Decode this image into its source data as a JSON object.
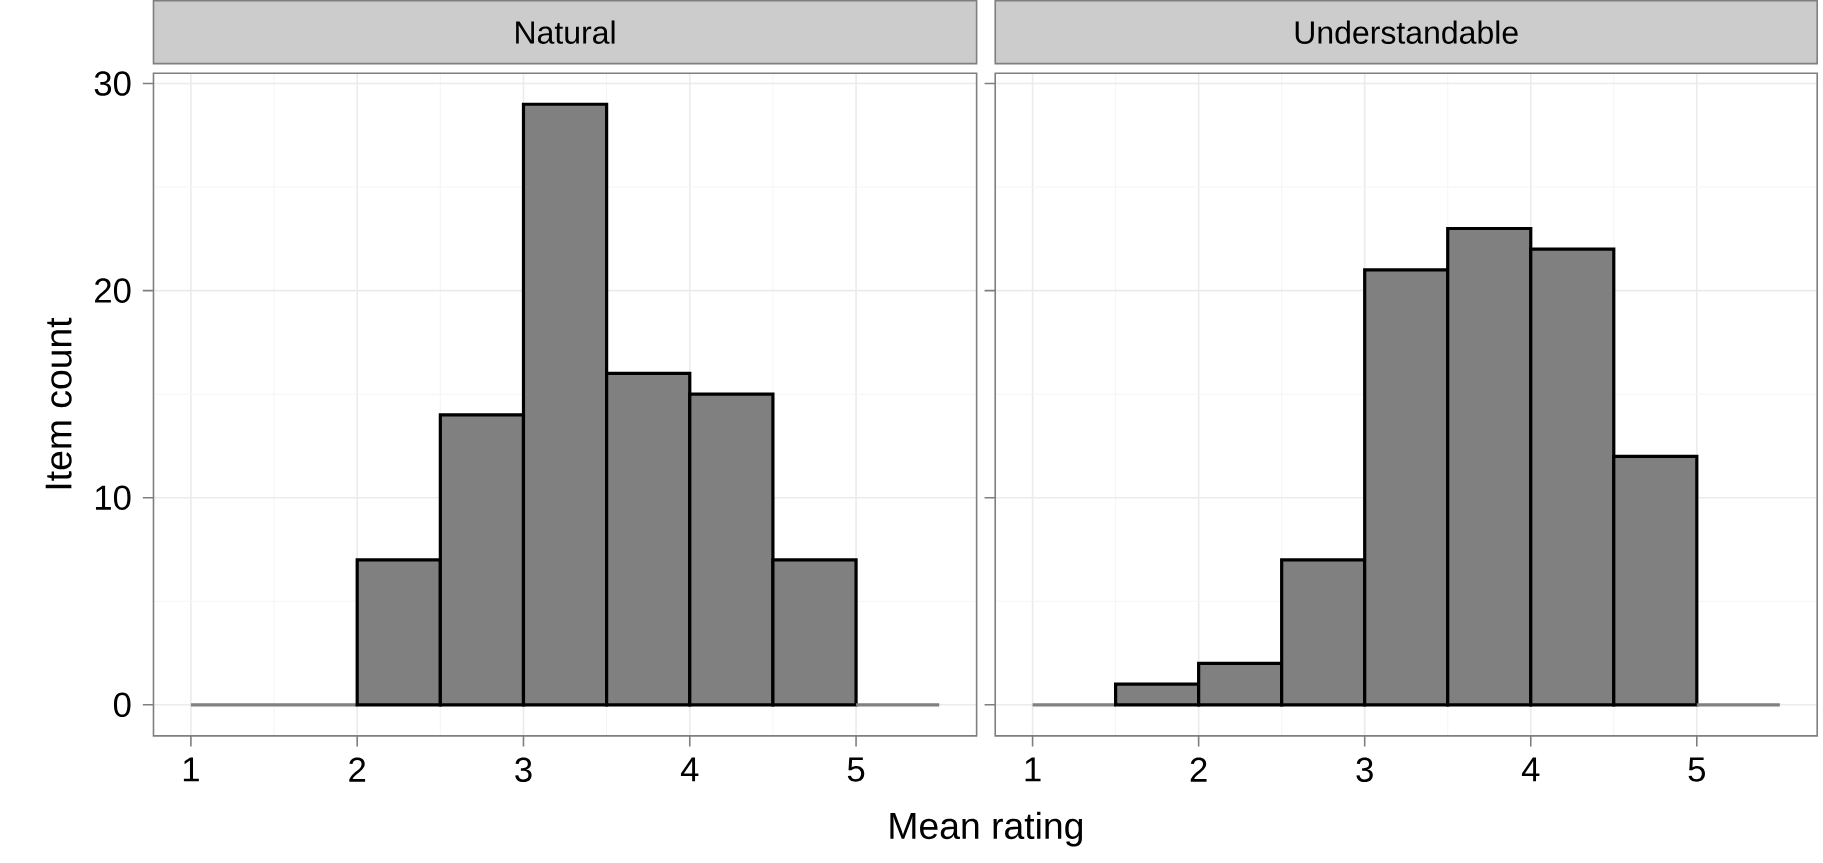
{
  "chart_data": [
    {
      "type": "histogram",
      "title": "Natural",
      "xlabel": "Mean rating",
      "ylabel": "Item count",
      "bins": [
        1,
        1.5,
        2,
        2.5,
        3,
        3.5,
        4,
        4.5,
        5,
        5.5
      ],
      "values": [
        0,
        0,
        7,
        14,
        29,
        16,
        15,
        7,
        0
      ],
      "color": "#808080",
      "xlim": [
        0.775,
        5.725
      ],
      "ylim": [
        -1.5,
        30.5
      ],
      "xticks": [
        1,
        2,
        3,
        4,
        5
      ],
      "yticks": [
        0,
        10,
        20,
        30
      ],
      "grid": true
    },
    {
      "type": "histogram",
      "title": "Understandable",
      "bins": [
        1,
        1.5,
        2,
        2.5,
        3,
        3.5,
        4,
        4.5,
        5,
        5.5
      ],
      "values": [
        0,
        1,
        2,
        7,
        21,
        23,
        22,
        12,
        0
      ],
      "color": "#808080",
      "xlim": [
        0.775,
        5.725
      ],
      "ylim": [
        -1.5,
        30.5
      ],
      "xticks": [
        1,
        2,
        3,
        4,
        5
      ],
      "yticks": [
        0,
        10,
        20,
        30
      ],
      "grid": true,
      "tick_labels": "x"
    }
  ]
}
